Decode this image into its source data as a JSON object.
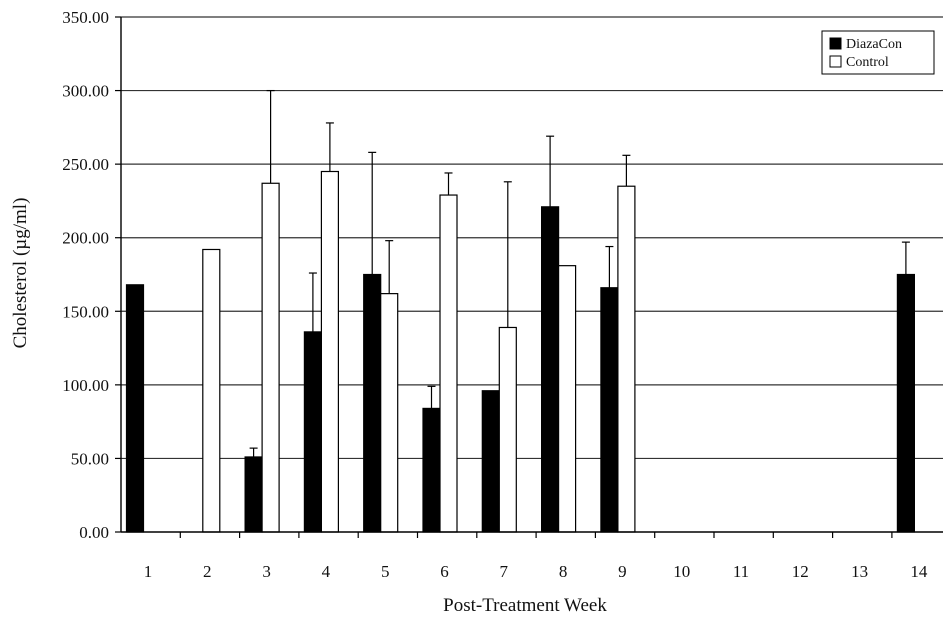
{
  "chart_data": {
    "type": "bar",
    "title": "",
    "xlabel": "Post-Treatment Week",
    "ylabel": "Cholesterol (µg/ml)",
    "ylim": [
      0,
      350
    ],
    "y_ticks": [
      "0.00",
      "50.00",
      "100.00",
      "150.00",
      "200.00",
      "250.00",
      "300.00",
      "350.00"
    ],
    "categories": [
      "1",
      "2",
      "3",
      "4",
      "5",
      "6",
      "7",
      "8",
      "9",
      "10",
      "11",
      "12",
      "13",
      "14"
    ],
    "grid": true,
    "legend_position": "top-right",
    "series": [
      {
        "name": "DiazaCon",
        "color": "#000000",
        "values": [
          168,
          null,
          51,
          136,
          175,
          84,
          96,
          221,
          166,
          null,
          null,
          null,
          null,
          175
        ],
        "error": [
          null,
          null,
          6,
          40,
          83,
          15,
          null,
          48,
          28,
          null,
          null,
          null,
          null,
          22
        ]
      },
      {
        "name": "Control",
        "color": "#ffffff",
        "values": [
          null,
          192,
          237,
          245,
          162,
          229,
          139,
          181,
          235,
          null,
          null,
          null,
          null,
          null
        ],
        "error": [
          null,
          null,
          63,
          33,
          36,
          15,
          99,
          null,
          21,
          null,
          null,
          null,
          null,
          null
        ]
      }
    ]
  }
}
